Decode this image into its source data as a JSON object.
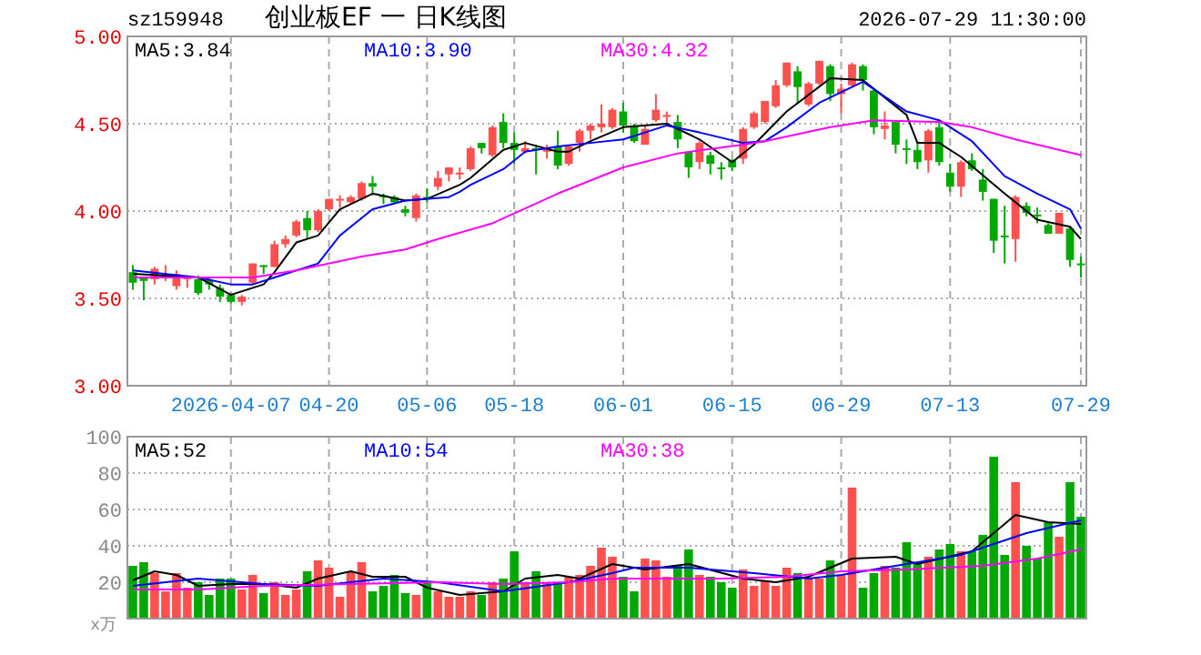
{
  "chart_data": [
    {
      "type": "candlestick",
      "title": "创业板EF 一 日K线图",
      "annotations": [
        "sz159948",
        "2026-07-29 11:30:00"
      ],
      "categories": [
        null,
        null,
        null,
        null,
        null,
        null,
        null,
        null,
        null,
        "2026-04-07",
        null,
        null,
        null,
        null,
        null,
        null,
        null,
        null,
        "04-20",
        null,
        null,
        null,
        null,
        null,
        null,
        null,
        null,
        "05-06",
        null,
        null,
        null,
        null,
        null,
        null,
        null,
        "05-18",
        null,
        null,
        null,
        null,
        null,
        null,
        null,
        null,
        null,
        "06-01",
        null,
        null,
        null,
        null,
        null,
        null,
        null,
        null,
        null,
        "06-15",
        null,
        null,
        null,
        null,
        null,
        null,
        null,
        null,
        null,
        "06-29",
        null,
        null,
        null,
        null,
        null,
        null,
        null,
        null,
        null,
        "07-13",
        null,
        null,
        null,
        null,
        null,
        null,
        null,
        null,
        null,
        null,
        null,
        "07-29"
      ],
      "ohlc": [
        [
          3.65,
          3.69,
          3.55,
          3.59
        ],
        [
          3.62,
          3.62,
          3.49,
          3.6
        ],
        [
          3.61,
          3.68,
          3.58,
          3.67
        ],
        [
          3.62,
          3.69,
          3.6,
          3.63
        ],
        [
          3.57,
          3.66,
          3.55,
          3.64
        ],
        [
          3.61,
          3.63,
          3.56,
          3.62
        ],
        [
          3.61,
          3.63,
          3.52,
          3.53
        ],
        [
          3.61,
          3.62,
          3.55,
          3.58
        ],
        [
          3.56,
          3.58,
          3.48,
          3.51
        ],
        [
          3.52,
          3.53,
          3.47,
          3.48
        ],
        [
          3.48,
          3.52,
          3.46,
          3.51
        ],
        [
          3.59,
          3.7,
          3.58,
          3.7
        ],
        [
          3.69,
          3.69,
          3.64,
          3.68
        ],
        [
          3.68,
          3.83,
          3.68,
          3.81
        ],
        [
          3.81,
          3.86,
          3.79,
          3.84
        ],
        [
          3.86,
          3.95,
          3.85,
          3.94
        ],
        [
          3.96,
          4.0,
          3.84,
          3.89
        ],
        [
          3.89,
          4.01,
          3.88,
          4.0
        ],
        [
          4.01,
          4.07,
          4.0,
          4.07
        ],
        [
          4.06,
          4.09,
          4.02,
          4.07
        ],
        [
          4.05,
          4.09,
          4.04,
          4.08
        ],
        [
          4.07,
          4.17,
          4.06,
          4.16
        ],
        [
          4.16,
          4.2,
          4.09,
          4.14
        ],
        [
          4.09,
          4.1,
          4.04,
          4.08
        ],
        [
          4.08,
          4.09,
          4.04,
          4.05
        ],
        [
          4.01,
          4.03,
          3.97,
          3.99
        ],
        [
          3.96,
          4.1,
          3.94,
          4.09
        ],
        [
          4.08,
          4.13,
          4.05,
          4.07
        ],
        [
          4.14,
          4.23,
          4.12,
          4.19
        ],
        [
          4.21,
          4.25,
          4.17,
          4.25
        ],
        [
          4.21,
          4.25,
          4.18,
          4.22
        ],
        [
          4.24,
          4.37,
          4.23,
          4.36
        ],
        [
          4.39,
          4.39,
          4.33,
          4.36
        ],
        [
          4.32,
          4.49,
          4.31,
          4.48
        ],
        [
          4.51,
          4.56,
          4.36,
          4.39
        ],
        [
          4.39,
          4.45,
          4.27,
          4.35
        ],
        [
          4.34,
          4.4,
          4.33,
          4.36
        ],
        [
          4.36,
          4.38,
          4.21,
          4.35
        ],
        [
          4.34,
          4.38,
          4.3,
          4.36
        ],
        [
          4.37,
          4.46,
          4.24,
          4.26
        ],
        [
          4.27,
          4.38,
          4.26,
          4.37
        ],
        [
          4.39,
          4.47,
          4.34,
          4.46
        ],
        [
          4.46,
          4.5,
          4.41,
          4.49
        ],
        [
          4.48,
          4.61,
          4.45,
          4.5
        ],
        [
          4.48,
          4.59,
          4.47,
          4.58
        ],
        [
          4.57,
          4.62,
          4.45,
          4.49
        ],
        [
          4.49,
          4.5,
          4.39,
          4.4
        ],
        [
          4.38,
          4.49,
          4.38,
          4.47
        ],
        [
          4.52,
          4.67,
          4.51,
          4.58
        ],
        [
          4.54,
          4.57,
          4.5,
          4.55
        ],
        [
          4.51,
          4.55,
          4.36,
          4.41
        ],
        [
          4.34,
          4.34,
          4.19,
          4.25
        ],
        [
          4.28,
          4.4,
          4.24,
          4.39
        ],
        [
          4.32,
          4.34,
          4.21,
          4.27
        ],
        [
          4.25,
          4.28,
          4.18,
          4.24
        ],
        [
          4.29,
          4.3,
          4.23,
          4.25
        ],
        [
          4.3,
          4.48,
          4.27,
          4.47
        ],
        [
          4.48,
          4.57,
          4.47,
          4.56
        ],
        [
          4.51,
          4.63,
          4.5,
          4.63
        ],
        [
          4.6,
          4.75,
          4.59,
          4.72
        ],
        [
          4.72,
          4.85,
          4.71,
          4.85
        ],
        [
          4.8,
          4.83,
          4.62,
          4.71
        ],
        [
          4.61,
          4.74,
          4.6,
          4.73
        ],
        [
          4.73,
          4.86,
          4.72,
          4.86
        ],
        [
          4.83,
          4.84,
          4.63,
          4.67
        ],
        [
          4.67,
          4.73,
          4.56,
          4.7
        ],
        [
          4.72,
          4.85,
          4.71,
          4.84
        ],
        [
          4.83,
          4.84,
          4.69,
          4.75
        ],
        [
          4.69,
          4.7,
          4.44,
          4.48
        ],
        [
          4.47,
          4.57,
          4.41,
          4.49
        ],
        [
          4.51,
          4.51,
          4.33,
          4.38
        ],
        [
          4.36,
          4.41,
          4.27,
          4.35
        ],
        [
          4.35,
          4.4,
          4.24,
          4.28
        ],
        [
          4.29,
          4.47,
          4.22,
          4.46
        ],
        [
          4.48,
          4.51,
          4.26,
          4.28
        ],
        [
          4.22,
          4.27,
          4.11,
          4.14
        ],
        [
          4.14,
          4.29,
          4.08,
          4.28
        ],
        [
          4.29,
          4.33,
          4.23,
          4.24
        ],
        [
          4.18,
          4.24,
          4.06,
          4.11
        ],
        [
          4.07,
          4.07,
          3.76,
          3.83
        ],
        [
          3.86,
          4.03,
          3.7,
          3.85
        ],
        [
          3.84,
          4.09,
          3.71,
          4.08
        ],
        [
          4.03,
          4.05,
          3.97,
          3.99
        ],
        [
          3.98,
          4.02,
          3.93,
          3.97
        ],
        [
          3.92,
          3.93,
          3.87,
          3.87
        ],
        [
          3.87,
          3.99,
          3.87,
          3.99
        ],
        [
          3.9,
          3.91,
          3.68,
          3.72
        ],
        [
          3.7,
          3.74,
          3.62,
          3.69
        ]
      ],
      "colors": [
        "#00a800",
        "#00a800",
        "#ff5050",
        "#ff5050",
        "#ff5050",
        "#ff5050",
        "#00a800",
        "#00a800",
        "#00a800",
        "#00a800",
        "#ff5050",
        "#ff5050",
        "#00a800",
        "#ff5050",
        "#ff5050",
        "#ff5050",
        "#00a800",
        "#ff5050",
        "#ff5050",
        "#ff5050",
        "#ff5050",
        "#ff5050",
        "#00a800",
        "#00a800",
        "#00a800",
        "#00a800",
        "#ff5050",
        "#00a800",
        "#ff5050",
        "#ff5050",
        "#ff5050",
        "#ff5050",
        "#00a800",
        "#ff5050",
        "#00a800",
        "#00a800",
        "#ff5050",
        "#00a800",
        "#ff5050",
        "#00a800",
        "#ff5050",
        "#ff5050",
        "#ff5050",
        "#ff5050",
        "#ff5050",
        "#00a800",
        "#00a800",
        "#ff5050",
        "#ff5050",
        "#ff5050",
        "#00a800",
        "#00a800",
        "#ff5050",
        "#00a800",
        "#00a800",
        "#00a800",
        "#ff5050",
        "#ff5050",
        "#ff5050",
        "#ff5050",
        "#ff5050",
        "#00a800",
        "#ff5050",
        "#ff5050",
        "#00a800",
        "#ff5050",
        "#ff5050",
        "#00a800",
        "#00a800",
        "#ff5050",
        "#00a800",
        "#00a800",
        "#00a800",
        "#ff5050",
        "#00a800",
        "#00a800",
        "#ff5050",
        "#00a800",
        "#00a800",
        "#00a800",
        "#00a800",
        "#ff5050",
        "#00a800",
        "#00a800",
        "#00a800",
        "#ff5050",
        "#00a800",
        "#00a800"
      ],
      "series": [
        {
          "type": "line",
          "name": "MA5:3.84",
          "color": "#000000",
          "values": [
            3.64,
            null,
            null,
            null,
            null,
            null,
            3.62,
            null,
            null,
            3.52,
            null,
            null,
            3.58,
            3.65,
            null,
            3.82,
            null,
            3.86,
            null,
            4.01,
            null,
            null,
            4.1,
            null,
            null,
            4.06,
            null,
            4.07,
            null,
            null,
            4.15,
            4.19,
            null,
            null,
            4.35,
            null,
            4.39,
            null,
            null,
            4.34,
            4.34,
            null,
            4.4,
            null,
            null,
            4.48,
            null,
            null,
            null,
            4.5,
            null,
            null,
            4.41,
            null,
            null,
            4.28,
            null,
            4.38,
            null,
            null,
            4.57,
            null,
            null,
            null,
            4.76,
            null,
            null,
            4.75,
            null,
            null,
            null,
            4.55,
            4.39,
            null,
            4.39,
            null,
            4.31,
            null,
            null,
            null,
            4.1,
            null,
            null,
            3.95,
            null,
            null,
            3.91,
            3.84
          ]
        },
        {
          "type": "line",
          "name": "MA10:3.90",
          "color": "#0000ff",
          "values": [
            3.66,
            null,
            null,
            null,
            null,
            null,
            3.62,
            null,
            null,
            3.58,
            null,
            3.58,
            null,
            3.62,
            null,
            null,
            null,
            3.7,
            null,
            3.86,
            null,
            null,
            4.01,
            null,
            null,
            4.06,
            null,
            null,
            null,
            4.08,
            4.11,
            4.15,
            null,
            null,
            4.24,
            null,
            4.34,
            null,
            null,
            4.37,
            null,
            null,
            4.39,
            null,
            null,
            4.41,
            null,
            4.45,
            null,
            4.49,
            null,
            null,
            4.45,
            null,
            null,
            null,
            4.39,
            null,
            4.4,
            null,
            4.48,
            null,
            null,
            4.62,
            null,
            null,
            null,
            4.74,
            null,
            null,
            null,
            4.57,
            null,
            null,
            4.52,
            null,
            null,
            4.4,
            null,
            null,
            4.2,
            null,
            null,
            4.1,
            null,
            null,
            4.01,
            3.9
          ]
        },
        {
          "type": "line",
          "name": "MA30:4.32",
          "color": "#ff00ff",
          "values": [
            3.62,
            null,
            null,
            null,
            null,
            null,
            null,
            null,
            null,
            null,
            null,
            3.62,
            null,
            null,
            null,
            3.66,
            null,
            null,
            null,
            null,
            null,
            3.74,
            null,
            null,
            null,
            3.78,
            null,
            null,
            3.84,
            null,
            null,
            null,
            null,
            3.93,
            null,
            null,
            null,
            null,
            null,
            4.1,
            null,
            null,
            null,
            null,
            null,
            4.25,
            null,
            null,
            null,
            null,
            4.33,
            null,
            null,
            null,
            null,
            null,
            4.38,
            null,
            4.4,
            null,
            null,
            null,
            null,
            null,
            4.48,
            null,
            null,
            null,
            4.52,
            null,
            null,
            null,
            null,
            null,
            4.51,
            null,
            null,
            4.48,
            null,
            null,
            null,
            4.41,
            null,
            null,
            null,
            null,
            null,
            4.32
          ]
        }
      ],
      "ylim": [
        3,
        5
      ],
      "yticks": [
        {
          "value": 3,
          "label": "3.00"
        },
        {
          "value": 3.5,
          "label": "3.50"
        },
        {
          "value": 4,
          "label": "4.00"
        },
        {
          "value": 4.5,
          "label": "4.50"
        },
        {
          "value": 5,
          "label": "5.00"
        }
      ],
      "grid": true,
      "legend": "top"
    },
    {
      "type": "bar",
      "ylabel": "x万",
      "categories": [
        null,
        null,
        null,
        null,
        null,
        null,
        null,
        null,
        null,
        null,
        null,
        null,
        null,
        null,
        null,
        null,
        null,
        null,
        null,
        null,
        null,
        null,
        null,
        null,
        null,
        null,
        null,
        null,
        null,
        null,
        null,
        null,
        null,
        null,
        null,
        null,
        null,
        null,
        null,
        null,
        null,
        null,
        null,
        null,
        null,
        null,
        null,
        null,
        null,
        null,
        null,
        null,
        null,
        null,
        null,
        null,
        null,
        null,
        null,
        null,
        null,
        null,
        null,
        null,
        null,
        null,
        null,
        null,
        null,
        null,
        null,
        null,
        null,
        null,
        null,
        null,
        null,
        null,
        null,
        null,
        null,
        null,
        null,
        null,
        null,
        null,
        null,
        null
      ],
      "values": [
        29,
        31,
        25,
        15,
        25,
        17,
        20,
        13,
        22,
        22,
        16,
        24,
        14,
        20,
        13,
        16,
        26,
        32,
        28,
        12,
        26,
        31,
        15,
        18,
        24,
        14,
        13,
        20,
        15,
        12,
        12,
        15,
        13,
        20,
        22,
        37,
        20,
        26,
        20,
        20,
        23,
        24,
        29,
        39,
        34,
        23,
        15,
        33,
        32,
        23,
        29,
        38,
        24,
        23,
        20,
        17,
        27,
        18,
        21,
        18,
        28,
        25,
        22,
        22,
        32,
        24,
        72,
        17,
        25,
        29,
        28,
        42,
        30,
        34,
        38,
        41,
        37,
        37,
        46,
        89,
        35,
        75,
        40,
        33,
        53,
        45,
        75,
        56
      ],
      "colors": [
        "#00a800",
        "#00a800",
        "#ff5050",
        "#ff5050",
        "#ff5050",
        "#ff5050",
        "#00a800",
        "#00a800",
        "#00a800",
        "#00a800",
        "#ff5050",
        "#ff5050",
        "#00a800",
        "#ff5050",
        "#ff5050",
        "#ff5050",
        "#00a800",
        "#ff5050",
        "#ff5050",
        "#ff5050",
        "#ff5050",
        "#ff5050",
        "#00a800",
        "#00a800",
        "#00a800",
        "#00a800",
        "#ff5050",
        "#00a800",
        "#ff5050",
        "#ff5050",
        "#ff5050",
        "#ff5050",
        "#00a800",
        "#ff5050",
        "#00a800",
        "#00a800",
        "#ff5050",
        "#00a800",
        "#ff5050",
        "#00a800",
        "#ff5050",
        "#ff5050",
        "#ff5050",
        "#ff5050",
        "#ff5050",
        "#00a800",
        "#00a800",
        "#ff5050",
        "#ff5050",
        "#ff5050",
        "#00a800",
        "#00a800",
        "#ff5050",
        "#00a800",
        "#00a800",
        "#00a800",
        "#ff5050",
        "#ff5050",
        "#ff5050",
        "#ff5050",
        "#ff5050",
        "#00a800",
        "#ff5050",
        "#ff5050",
        "#00a800",
        "#ff5050",
        "#ff5050",
        "#00a800",
        "#00a800",
        "#ff5050",
        "#00a800",
        "#00a800",
        "#00a800",
        "#ff5050",
        "#00a800",
        "#00a800",
        "#ff5050",
        "#00a800",
        "#00a800",
        "#00a800",
        "#00a800",
        "#ff5050",
        "#00a800",
        "#00a800",
        "#00a800",
        "#ff5050",
        "#00a800",
        "#00a800"
      ],
      "series": [
        {
          "type": "line",
          "name": "MA5:52",
          "color": "#000000",
          "values": [
            21,
            null,
            26,
            null,
            24,
            null,
            18,
            null,
            null,
            19,
            null,
            null,
            19,
            null,
            null,
            17,
            null,
            22,
            null,
            null,
            26,
            null,
            23,
            null,
            null,
            23,
            null,
            17,
            null,
            null,
            13,
            null,
            null,
            null,
            15,
            null,
            22,
            null,
            null,
            24,
            null,
            22,
            null,
            null,
            30,
            null,
            null,
            27,
            null,
            null,
            null,
            30,
            null,
            null,
            null,
            null,
            22,
            null,
            null,
            20,
            null,
            null,
            23,
            null,
            null,
            null,
            33,
            null,
            null,
            null,
            34,
            null,
            30,
            null,
            null,
            null,
            null,
            37,
            null,
            null,
            null,
            57,
            null,
            null,
            53,
            null,
            null,
            52
          ]
        },
        {
          "type": "line",
          "name": "MA10:54",
          "color": "#0000ff",
          "values": [
            18,
            null,
            null,
            null,
            null,
            null,
            22,
            null,
            null,
            null,
            null,
            null,
            19,
            null,
            null,
            null,
            null,
            18,
            null,
            null,
            null,
            null,
            null,
            22,
            null,
            null,
            null,
            null,
            20,
            null,
            null,
            null,
            null,
            null,
            15,
            null,
            null,
            null,
            null,
            null,
            20,
            null,
            null,
            null,
            25,
            null,
            28,
            null,
            null,
            null,
            null,
            28,
            null,
            null,
            null,
            null,
            null,
            25,
            null,
            null,
            null,
            null,
            22,
            null,
            null,
            24,
            null,
            null,
            null,
            null,
            null,
            30,
            null,
            null,
            null,
            null,
            35,
            null,
            null,
            null,
            null,
            null,
            47,
            null,
            null,
            null,
            null,
            54
          ]
        },
        {
          "type": "line",
          "name": "MA30:38",
          "color": "#ff00ff",
          "values": [
            16,
            null,
            null,
            null,
            null,
            null,
            16,
            null,
            null,
            null,
            null,
            null,
            18,
            null,
            null,
            null,
            null,
            null,
            null,
            null,
            19,
            null,
            null,
            null,
            null,
            null,
            null,
            null,
            20,
            null,
            null,
            null,
            null,
            null,
            19,
            null,
            null,
            null,
            null,
            null,
            20,
            null,
            null,
            null,
            22,
            null,
            null,
            null,
            null,
            null,
            null,
            null,
            null,
            null,
            22,
            null,
            null,
            null,
            null,
            null,
            23,
            null,
            null,
            null,
            null,
            26,
            null,
            null,
            null,
            null,
            null,
            27,
            null,
            null,
            null,
            null,
            null,
            null,
            29,
            null,
            null,
            null,
            null,
            33,
            null,
            null,
            null,
            38
          ]
        }
      ],
      "ylim": [
        0,
        100
      ],
      "yticks": [
        20,
        40,
        60,
        80,
        100
      ],
      "grid": true,
      "legend": "top"
    }
  ]
}
